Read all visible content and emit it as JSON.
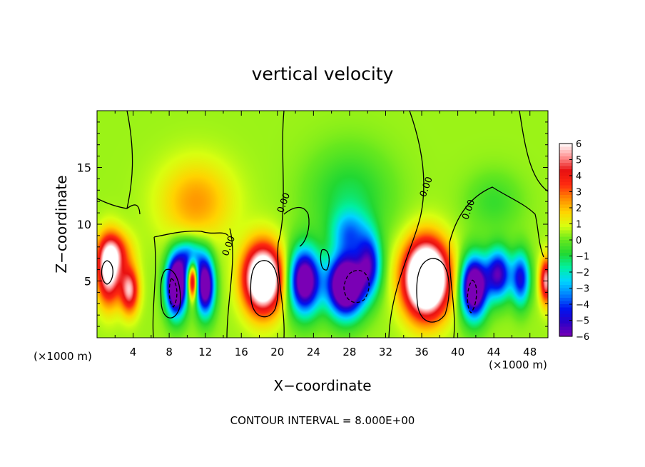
{
  "chart_data": {
    "type": "heatmap",
    "title": "vertical velocity",
    "xlabel": "X−coordinate",
    "ylabel": "Z−coordinate",
    "x_unit_left": "(×1000 m)",
    "x_unit_right": "(×1000 m)",
    "footer": "CONTOUR INTERVAL = 8.000E+00",
    "xlim": [
      0,
      50
    ],
    "ylim": [
      0,
      20
    ],
    "x_ticks": [
      4,
      8,
      12,
      16,
      20,
      24,
      28,
      32,
      36,
      40,
      44,
      48
    ],
    "y_ticks": [
      5,
      10,
      15
    ],
    "colorbar": {
      "range": [
        -6,
        6
      ],
      "tick_values": [
        6,
        5,
        4,
        3,
        2,
        1,
        0,
        -1,
        -2,
        -3,
        -4,
        -5,
        -6
      ],
      "tick_labels": [
        "6",
        "5",
        "4",
        "3",
        "2",
        "1",
        "0",
        "−1",
        "−2",
        "−3",
        "−4",
        "−5",
        "−6"
      ],
      "colors": [
        "#7a00b5",
        "#2a00c8",
        "#0014f0",
        "#0080ff",
        "#00d6ff",
        "#00f0a0",
        "#22d832",
        "#66e81e",
        "#d8ff10",
        "#ffd400",
        "#ff8a00",
        "#ff2a10",
        "#e81010",
        "#ff9090",
        "#ffffff"
      ]
    },
    "contour_labels": [
      {
        "text": "0.00",
        "x": 14.9,
        "z": 8.0
      },
      {
        "text": "0.00",
        "x": 21.0,
        "z": 11.8
      },
      {
        "text": "0.00",
        "x": 36.8,
        "z": 13.2
      },
      {
        "text": "0.00",
        "x": 41.5,
        "z": 11.2
      }
    ],
    "cells": [
      {
        "x": 1.3,
        "z": 5.8,
        "w": 6,
        "sx": 1.3,
        "sz": 2.8
      },
      {
        "x": 3.6,
        "z": 4.2,
        "w": 5,
        "sx": 1.0,
        "sz": 2.0
      },
      {
        "x": 2.0,
        "z": 7.5,
        "w": 3,
        "sx": 1.8,
        "sz": 1.8
      },
      {
        "x": 8.8,
        "z": 4.6,
        "w": -10,
        "sx": 1.1,
        "sz": 2.5
      },
      {
        "x": 10.6,
        "z": 5.0,
        "w": 6,
        "sx": 0.5,
        "sz": 1.6
      },
      {
        "x": 12.0,
        "z": 4.6,
        "w": -8,
        "sx": 1.0,
        "sz": 2.5
      },
      {
        "x": 10.3,
        "z": 7.2,
        "w": -4,
        "sx": 1.4,
        "sz": 1.5
      },
      {
        "x": 18.4,
        "z": 5.2,
        "w": 9,
        "sx": 2.1,
        "sz": 2.9
      },
      {
        "x": 23.0,
        "z": 5.0,
        "w": -8,
        "sx": 1.7,
        "sz": 2.8
      },
      {
        "x": 27.6,
        "z": 4.6,
        "w": -10,
        "sx": 2.0,
        "sz": 2.6
      },
      {
        "x": 30.2,
        "z": 6.5,
        "w": -5,
        "sx": 1.3,
        "sz": 2.6
      },
      {
        "x": 28.0,
        "z": 9.2,
        "w": -3,
        "sx": 2.0,
        "sz": 2.0
      },
      {
        "x": 36.5,
        "z": 5.2,
        "w": 11,
        "sx": 2.4,
        "sz": 3.2
      },
      {
        "x": 41.8,
        "z": 4.4,
        "w": -9,
        "sx": 1.4,
        "sz": 2.6
      },
      {
        "x": 44.5,
        "z": 5.6,
        "w": -6,
        "sx": 1.4,
        "sz": 2.2
      },
      {
        "x": 47.0,
        "z": 5.2,
        "w": -5,
        "sx": 1.0,
        "sz": 2.3
      },
      {
        "x": 49.8,
        "z": 5.0,
        "w": 5,
        "sx": 0.7,
        "sz": 2.0
      },
      {
        "x": 11.0,
        "z": 12.0,
        "w": 2,
        "sx": 4.0,
        "sz": 3.5
      },
      {
        "x": 28.0,
        "z": 12.5,
        "w": -1.5,
        "sx": 4.5,
        "sz": 4.0
      },
      {
        "x": 44.0,
        "z": 12.0,
        "w": -1,
        "sx": 3.0,
        "sz": 2.5
      }
    ]
  }
}
